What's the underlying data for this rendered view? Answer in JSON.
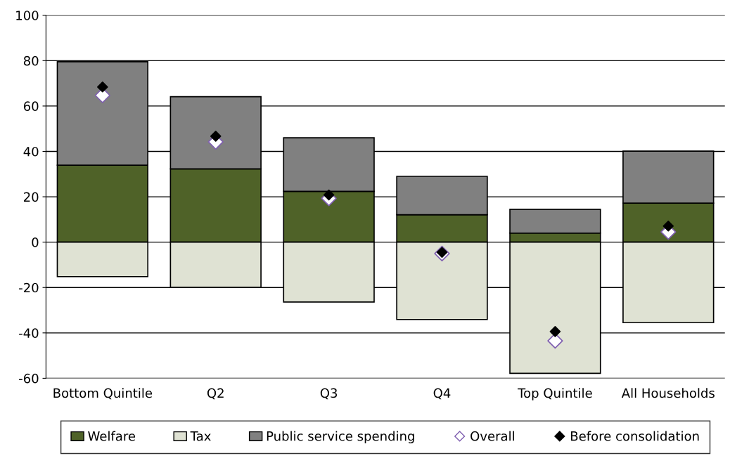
{
  "chart_data": {
    "type": "bar",
    "stacked": true,
    "categories": [
      "Bottom Quintile",
      "Q2",
      "Q3",
      "Q4",
      "Top Quintile",
      "All Households"
    ],
    "series": [
      {
        "name": "Welfare",
        "color": "#4f6228",
        "values": [
          33.9,
          32.3,
          22.4,
          12.1,
          4.0,
          17.2
        ]
      },
      {
        "name": "Tax",
        "color": "#dfe2d3",
        "values": [
          -15.2,
          -19.9,
          -26.4,
          -34.1,
          -57.8,
          -35.5
        ]
      },
      {
        "name": "Public service spending",
        "color": "#808080",
        "values": [
          45.6,
          31.8,
          23.6,
          16.9,
          10.5,
          22.9
        ]
      },
      {
        "name": "Overall",
        "type": "scatter",
        "marker": "diamond",
        "color": "#ffffff",
        "values": [
          64.7,
          44.2,
          19.3,
          -5.0,
          -43.5,
          4.5
        ]
      },
      {
        "name": "Before consolidation",
        "type": "scatter",
        "marker": "diamond",
        "color": "#000000",
        "values": [
          68.4,
          46.7,
          20.8,
          -4.5,
          -39.4,
          7.1
        ]
      }
    ],
    "ylim": [
      -60,
      100
    ],
    "yticks": [
      -60,
      -40,
      -20,
      0,
      20,
      40,
      60,
      80,
      100
    ],
    "grid": "y",
    "legend": "bottom"
  }
}
